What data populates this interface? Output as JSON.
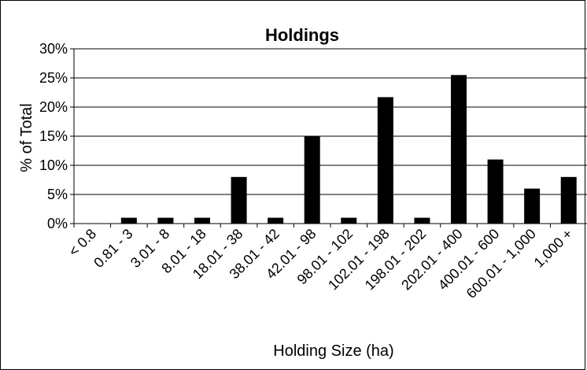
{
  "chart_data": {
    "type": "bar",
    "title": "Holdings",
    "xlabel": "Holding Size (ha)",
    "ylabel": "% of Total",
    "categories": [
      "< 0.8",
      "0.81 - 3",
      "3.01 - 8",
      "8.01 - 18",
      "18.01 - 38",
      "38.01 - 42",
      "42.01 - 98",
      "98.01 - 102",
      "102.01 - 198",
      "198.01 - 202",
      "202.01 - 400",
      "400.01 - 600",
      "600.01 - 1,000",
      "1,000 +"
    ],
    "values": [
      0,
      1,
      1,
      1,
      8,
      1,
      15,
      1,
      21.7,
      1,
      25.5,
      11,
      6,
      8
    ],
    "ylim": [
      0,
      30
    ],
    "yticks": [
      "0%",
      "5%",
      "10%",
      "15%",
      "20%",
      "25%",
      "30%"
    ],
    "grid": true,
    "bar_color": "#000000"
  }
}
